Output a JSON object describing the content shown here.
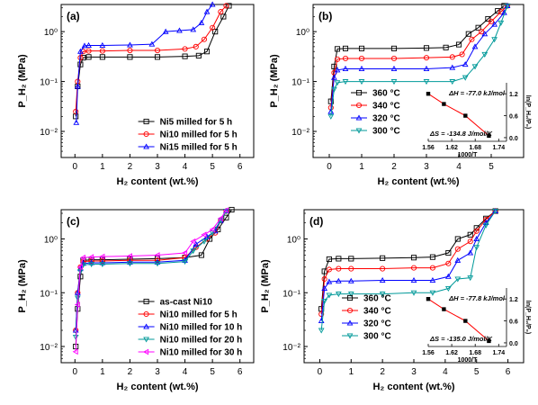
{
  "chart_data": [
    {
      "panel_label": "(a)",
      "type": "line",
      "xlabel": "H₂ content (wt.%)",
      "ylabel": "P_H₂ (MPa)",
      "xlim": [
        -0.5,
        6.5
      ],
      "ylim": [
        0.003,
        3.5
      ],
      "yscale": "log",
      "x_ticks": [
        "0",
        "1",
        "2",
        "3",
        "4",
        "5",
        "6"
      ],
      "y_ticks": [
        "10⁻²",
        "10⁻¹",
        "10⁰"
      ],
      "legend_position": "bottom-right",
      "series": [
        {
          "name": "Ni5 milled for 5 h",
          "color": "#000000",
          "marker": "square",
          "x": [
            0.03,
            0.1,
            0.2,
            0.3,
            0.5,
            1.0,
            2.0,
            3.0,
            4.0,
            4.5,
            4.8,
            5.1,
            5.4,
            5.6
          ],
          "y": [
            0.02,
            0.08,
            0.22,
            0.3,
            0.31,
            0.31,
            0.31,
            0.31,
            0.32,
            0.33,
            0.4,
            1.0,
            2.0,
            3.3
          ]
        },
        {
          "name": "Ni10 milled for 5 h",
          "color": "#ff0000",
          "marker": "circle",
          "x": [
            0.03,
            0.1,
            0.2,
            0.3,
            0.5,
            1.0,
            2.0,
            3.0,
            4.0,
            4.4,
            4.7,
            5.0,
            5.3,
            5.5
          ],
          "y": [
            0.025,
            0.1,
            0.3,
            0.4,
            0.41,
            0.41,
            0.42,
            0.42,
            0.45,
            0.5,
            0.7,
            1.2,
            2.5,
            3.3
          ]
        },
        {
          "name": "Ni15 milled for 5 h",
          "color": "#0000ff",
          "marker": "triangle",
          "x": [
            0.05,
            0.1,
            0.2,
            0.35,
            0.5,
            1.0,
            2.0,
            2.8,
            3.3,
            3.8,
            4.3,
            4.6,
            4.8,
            5.0
          ],
          "y": [
            0.015,
            0.08,
            0.4,
            0.52,
            0.53,
            0.53,
            0.54,
            0.56,
            1.0,
            1.05,
            1.1,
            1.5,
            2.5,
            3.5
          ]
        }
      ]
    },
    {
      "panel_label": "(b)",
      "type": "line",
      "xlabel": "H₂ content (wt.%)",
      "ylabel": "P_H₂ (MPa)",
      "xlim": [
        -0.5,
        6
      ],
      "ylim": [
        0.003,
        3.5
      ],
      "yscale": "log",
      "x_ticks": [
        "0",
        "1",
        "2",
        "3",
        "4",
        "5"
      ],
      "y_ticks": [
        "10⁻²",
        "10⁻¹",
        "10⁰"
      ],
      "legend_position": "bottom-center",
      "series": [
        {
          "name": "360 °C",
          "color": "#000000",
          "marker": "square",
          "x": [
            0.05,
            0.15,
            0.25,
            0.5,
            1.0,
            2.0,
            3.0,
            3.6,
            4.0,
            4.3,
            4.6,
            4.9,
            5.2,
            5.4
          ],
          "y": [
            0.04,
            0.2,
            0.45,
            0.46,
            0.46,
            0.46,
            0.47,
            0.48,
            0.55,
            0.9,
            1.2,
            1.8,
            2.6,
            3.3
          ]
        },
        {
          "name": "340 °C",
          "color": "#ff0000",
          "marker": "circle",
          "x": [
            0.05,
            0.15,
            0.25,
            0.5,
            1.0,
            2.0,
            3.0,
            3.8,
            4.1,
            4.4,
            4.7,
            5.0,
            5.3,
            5.5
          ],
          "y": [
            0.03,
            0.15,
            0.28,
            0.29,
            0.29,
            0.29,
            0.3,
            0.31,
            0.35,
            0.7,
            1.0,
            1.6,
            2.5,
            3.3
          ]
        },
        {
          "name": "320 °C",
          "color": "#0000ff",
          "marker": "triangle",
          "x": [
            0.05,
            0.15,
            0.25,
            0.5,
            1.0,
            2.0,
            3.0,
            3.8,
            4.2,
            4.5,
            4.8,
            5.1,
            5.4,
            5.5
          ],
          "y": [
            0.025,
            0.12,
            0.17,
            0.18,
            0.18,
            0.18,
            0.18,
            0.19,
            0.22,
            0.5,
            0.9,
            1.4,
            2.4,
            3.3
          ]
        },
        {
          "name": "300 °C",
          "color": "#009999",
          "marker": "triangle-down",
          "x": [
            0.05,
            0.15,
            0.25,
            0.5,
            1.0,
            2.0,
            3.0,
            3.8,
            4.2,
            4.5,
            4.8,
            5.1,
            5.3,
            5.5
          ],
          "y": [
            0.02,
            0.07,
            0.095,
            0.1,
            0.1,
            0.1,
            0.1,
            0.1,
            0.12,
            0.2,
            0.35,
            0.7,
            1.5,
            3.3
          ]
        }
      ],
      "inset": {
        "annotation_top": "ΔH = -77.0 kJ/mol",
        "annotation_bottom": "ΔS = -134.8 J/mol/K",
        "xlabel": "1000/T",
        "ylabel": "ln(P_H₂/P₀)",
        "x_ticks": [
          "1.56",
          "1.62",
          "1.68",
          "1.74"
        ],
        "y_ticks": [
          "0.0",
          "0.6",
          "1.2"
        ],
        "xlim": [
          1.56,
          1.76
        ],
        "ylim": [
          -0.1,
          1.5
        ],
        "x": [
          1.56,
          1.6,
          1.655,
          1.715
        ],
        "y": [
          1.2,
          0.92,
          0.6,
          0.05
        ]
      }
    },
    {
      "panel_label": "(c)",
      "type": "line",
      "xlabel": "H₂ content (wt.%)",
      "ylabel": "P_H₂ (MPa)",
      "xlim": [
        -0.5,
        6.5
      ],
      "ylim": [
        0.005,
        3.5
      ],
      "yscale": "log",
      "x_ticks": [
        "0",
        "1",
        "2",
        "3",
        "4",
        "5",
        "6"
      ],
      "y_ticks": [
        "10⁻²",
        "10⁻¹",
        "10⁰"
      ],
      "legend_position": "bottom-right",
      "series": [
        {
          "name": "as-cast Ni10",
          "color": "#000000",
          "marker": "square",
          "x": [
            0.03,
            0.1,
            0.2,
            0.3,
            0.6,
            1.0,
            2.0,
            3.0,
            4.0,
            4.6,
            4.9,
            5.2,
            5.5,
            5.7
          ],
          "y": [
            0.01,
            0.05,
            0.2,
            0.4,
            0.41,
            0.41,
            0.42,
            0.43,
            0.45,
            0.5,
            1.0,
            1.5,
            2.5,
            3.5
          ]
        },
        {
          "name": "Ni10 milled for 5 h",
          "color": "#ff0000",
          "marker": "circle",
          "x": [
            0.03,
            0.1,
            0.2,
            0.3,
            0.6,
            1.0,
            2.0,
            3.0,
            4.0,
            4.4,
            4.8,
            5.1,
            5.3,
            5.5
          ],
          "y": [
            0.02,
            0.1,
            0.3,
            0.38,
            0.39,
            0.39,
            0.4,
            0.4,
            0.45,
            0.7,
            1.0,
            1.3,
            2.2,
            3.3
          ]
        },
        {
          "name": "Ni10 milled for 10 h",
          "color": "#0000ff",
          "marker": "triangle",
          "x": [
            0.03,
            0.1,
            0.2,
            0.3,
            0.6,
            1.0,
            2.0,
            3.0,
            4.0,
            4.4,
            4.8,
            5.1,
            5.3,
            5.5
          ],
          "y": [
            0.02,
            0.1,
            0.28,
            0.35,
            0.36,
            0.36,
            0.37,
            0.37,
            0.4,
            0.8,
            1.1,
            1.4,
            2.2,
            3.3
          ]
        },
        {
          "name": "Ni10 milled for 20 h",
          "color": "#009999",
          "marker": "triangle-down",
          "x": [
            0.03,
            0.1,
            0.2,
            0.3,
            0.6,
            1.0,
            2.0,
            3.0,
            4.0,
            4.3,
            4.7,
            5.0,
            5.3,
            5.5
          ],
          "y": [
            0.015,
            0.08,
            0.25,
            0.33,
            0.34,
            0.34,
            0.35,
            0.35,
            0.38,
            0.6,
            0.9,
            1.3,
            2.2,
            3.3
          ]
        },
        {
          "name": "Ni10 milled for 30 h",
          "color": "#ff00ff",
          "marker": "triangle-left",
          "x": [
            0.03,
            0.1,
            0.2,
            0.3,
            0.6,
            1.0,
            2.0,
            3.0,
            4.0,
            4.3,
            4.7,
            5.0,
            5.3,
            5.5
          ],
          "y": [
            0.008,
            0.06,
            0.3,
            0.45,
            0.46,
            0.47,
            0.48,
            0.5,
            0.55,
            0.9,
            1.2,
            1.5,
            2.4,
            3.4
          ]
        }
      ]
    },
    {
      "panel_label": "(d)",
      "type": "line",
      "xlabel": "H₂ content (wt.%)",
      "ylabel": "P_H₂ (MPa)",
      "xlim": [
        -0.5,
        6.5
      ],
      "ylim": [
        0.005,
        3.5
      ],
      "yscale": "log",
      "x_ticks": [
        "0",
        "1",
        "2",
        "3",
        "4",
        "5",
        "6"
      ],
      "y_ticks": [
        "10⁻²",
        "10⁻¹",
        "10⁰"
      ],
      "legend_position": "bottom-center",
      "series": [
        {
          "name": "360 °C",
          "color": "#000000",
          "marker": "square",
          "x": [
            0.05,
            0.15,
            0.3,
            0.6,
            1.0,
            2.0,
            3.0,
            3.6,
            4.1,
            4.4,
            4.8,
            5.0,
            5.3,
            5.6
          ],
          "y": [
            0.05,
            0.25,
            0.42,
            0.43,
            0.43,
            0.44,
            0.45,
            0.46,
            0.55,
            1.0,
            1.2,
            1.6,
            2.4,
            3.3
          ]
        },
        {
          "name": "340 °C",
          "color": "#ff0000",
          "marker": "circle",
          "x": [
            0.05,
            0.15,
            0.3,
            0.6,
            1.0,
            2.0,
            3.0,
            3.6,
            4.1,
            4.4,
            4.8,
            5.0,
            5.3,
            5.6
          ],
          "y": [
            0.04,
            0.18,
            0.27,
            0.28,
            0.28,
            0.28,
            0.29,
            0.29,
            0.35,
            0.65,
            0.9,
            1.4,
            2.3,
            3.3
          ]
        },
        {
          "name": "320 °C",
          "color": "#0000ff",
          "marker": "triangle",
          "x": [
            0.05,
            0.15,
            0.3,
            0.6,
            1.0,
            2.0,
            3.0,
            3.6,
            4.1,
            4.4,
            4.8,
            5.0,
            5.3,
            5.6
          ],
          "y": [
            0.03,
            0.12,
            0.16,
            0.165,
            0.165,
            0.17,
            0.17,
            0.17,
            0.2,
            0.4,
            0.55,
            1.0,
            2.0,
            3.3
          ]
        },
        {
          "name": "300 °C",
          "color": "#009999",
          "marker": "triangle-down",
          "x": [
            0.05,
            0.15,
            0.3,
            0.6,
            1.0,
            2.0,
            3.0,
            3.6,
            4.1,
            4.4,
            4.8,
            5.0,
            5.3,
            5.6
          ],
          "y": [
            0.02,
            0.07,
            0.09,
            0.095,
            0.095,
            0.095,
            0.1,
            0.1,
            0.12,
            0.18,
            0.19,
            0.7,
            1.8,
            3.3
          ]
        }
      ],
      "inset": {
        "annotation_top": "ΔH = -77.8 kJ/mol",
        "annotation_bottom": "ΔS = -135.0 J/mol/K",
        "xlabel": "1000/T",
        "ylabel": "ln(P_H₂/P₀)",
        "x_ticks": [
          "1.56",
          "1.62",
          "1.68",
          "1.74"
        ],
        "y_ticks": [
          "0.0",
          "0.6",
          "1.2"
        ],
        "xlim": [
          1.56,
          1.76
        ],
        "ylim": [
          -0.1,
          1.5
        ],
        "x": [
          1.56,
          1.6,
          1.655,
          1.715
        ],
        "y": [
          1.2,
          0.92,
          0.6,
          0.05
        ]
      }
    }
  ]
}
